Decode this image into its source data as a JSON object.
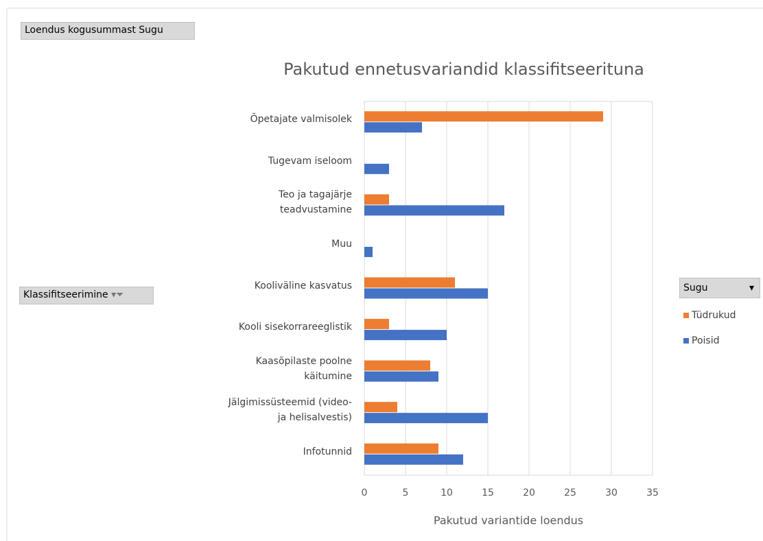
{
  "chart_data": {
    "type": "bar",
    "orientation": "horizontal",
    "title": "Pakutud ennetusvariandid klassifitseerituna",
    "value_field_button": "Loendus kogusummast Sugu",
    "axis_field_button": "Klassifitseerimine",
    "legend_title": "Sugu",
    "xlabel": "Pakutud variantide loendus",
    "categories": [
      "Õpetajate valmisolek",
      "Tugevam iseloom",
      "Teo ja tagajärje teadvustamine",
      "Muu",
      "Kooliväline kasvatus",
      "Kooli sisekorrareeglistik",
      "Kaasõpilaste poolne käitumine",
      "Jälgimissüsteemid (video- ja helisalvestis)",
      "Infotunnid"
    ],
    "series": [
      {
        "name": "Tüdrukud",
        "color": "#ed7d31",
        "values": [
          29,
          null,
          3,
          null,
          11,
          3,
          8,
          4,
          9
        ]
      },
      {
        "name": "Poisid",
        "color": "#4472c4",
        "values": [
          7,
          3,
          17,
          1,
          15,
          10,
          9,
          15,
          12
        ]
      }
    ],
    "xlim": [
      0,
      35
    ],
    "xticks": [
      0,
      5,
      10,
      15,
      20,
      25,
      30,
      35
    ],
    "grid": true,
    "legend_position": "right"
  }
}
